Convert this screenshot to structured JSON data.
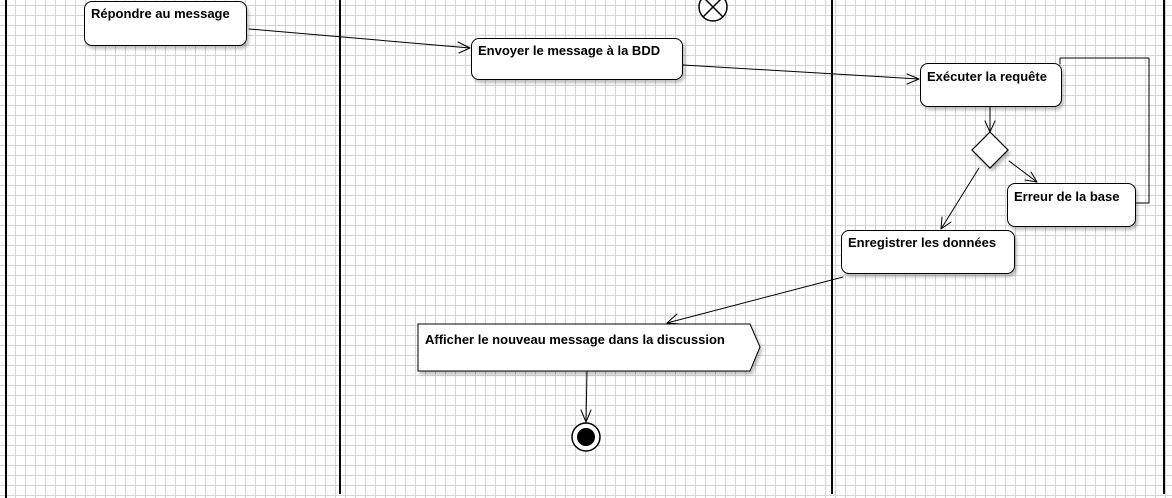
{
  "diagram": {
    "type": "uml-activity-diagram",
    "colors": {
      "line": "#000000",
      "node_fill": "#ffffff",
      "grid": "#d4d4d4"
    },
    "actions": {
      "repondre": "Répondre au message",
      "envoyer": "Envoyer le message à la BDD",
      "executer": "Exécuter la requête",
      "erreur": "Erreur de la base",
      "enregistrer": "Enregistrer les données"
    },
    "signal": {
      "afficher": "Afficher le nouveau message dans la discussion"
    },
    "nodes": {
      "flow_final": "flow-final-node",
      "activity_final": "activity-final-node",
      "decision": "decision-node"
    }
  }
}
